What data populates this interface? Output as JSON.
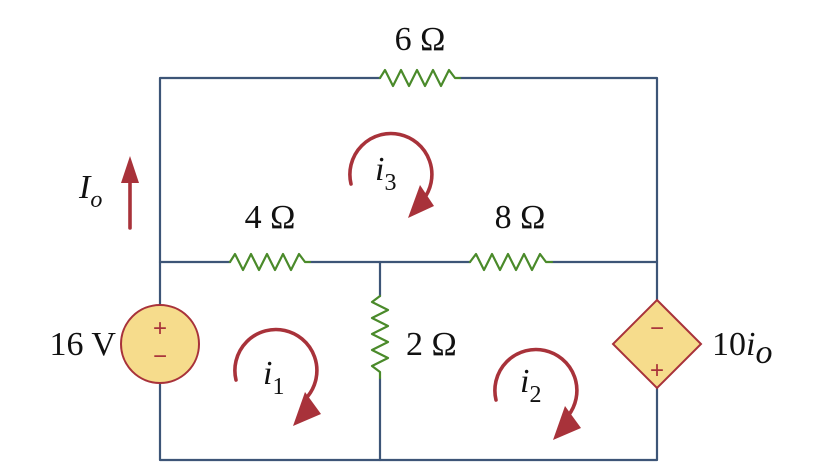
{
  "resistors": {
    "top": "6 Ω",
    "left_mid": "4 Ω",
    "right_mid": "8 Ω",
    "center": "2 Ω"
  },
  "voltage_source": {
    "label": "16 V",
    "plus_sign": "+",
    "minus_sign": "−",
    "fill_color": "#f6dc8c",
    "stroke_color": "#a8323a"
  },
  "dependent_source": {
    "label_coef": "10",
    "label_var": "i",
    "label_sub": "o",
    "plus_sign": "+",
    "minus_sign": "−"
  },
  "current_label": {
    "main": "I",
    "sub": "o"
  },
  "mesh_currents": [
    {
      "main": "i",
      "sub": "1"
    },
    {
      "main": "i",
      "sub": "2"
    },
    {
      "main": "i",
      "sub": "3"
    }
  ],
  "colors": {
    "wire": "#3d5577",
    "resistor": "#4a8a2a",
    "arrow": "#a8323a"
  }
}
